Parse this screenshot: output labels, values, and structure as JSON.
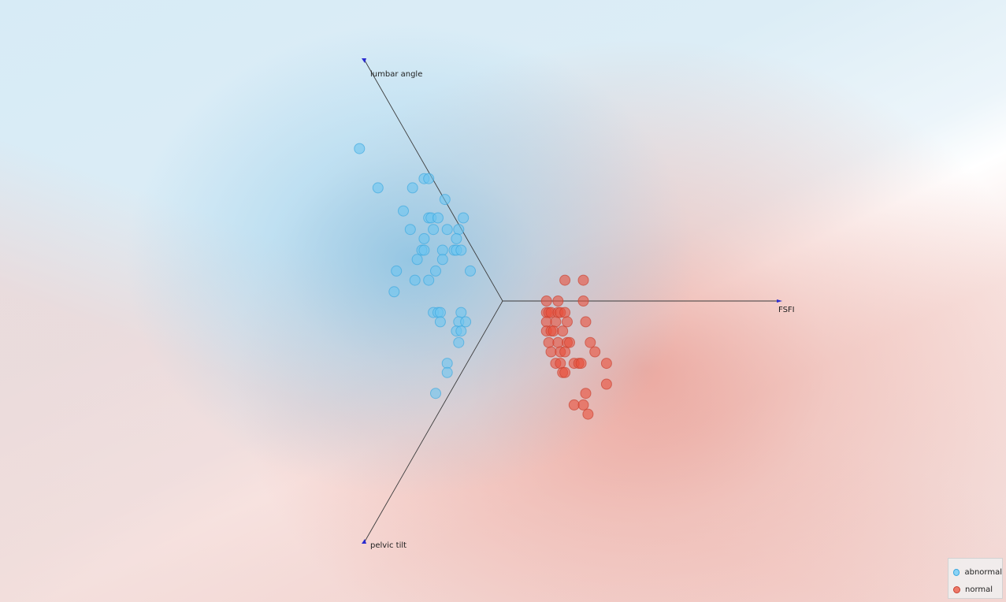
{
  "chart_data": {
    "type": "scatter",
    "projection": "radviz",
    "title": "",
    "anchors": [
      {
        "label": "lumbar angle"
      },
      {
        "label": "FSFI"
      },
      {
        "label": "pelvic tilt"
      }
    ],
    "legend": {
      "placement": "bottom-right",
      "items": [
        {
          "label": "abnormal",
          "color": "#6cc5f0"
        },
        {
          "label": "normal",
          "color": "#e8503c"
        }
      ]
    },
    "series": [
      {
        "name": "abnormal",
        "color": "#6cc5f0",
        "points": [
          [
            -0.62,
            0.66
          ],
          [
            -0.54,
            0.49
          ],
          [
            -0.34,
            0.53
          ],
          [
            -0.32,
            0.53
          ],
          [
            -0.39,
            0.49
          ],
          [
            -0.25,
            0.44
          ],
          [
            -0.43,
            0.39
          ],
          [
            -0.32,
            0.36
          ],
          [
            -0.31,
            0.36
          ],
          [
            -0.28,
            0.36
          ],
          [
            -0.17,
            0.36
          ],
          [
            -0.4,
            0.31
          ],
          [
            -0.3,
            0.31
          ],
          [
            -0.24,
            0.31
          ],
          [
            -0.19,
            0.31
          ],
          [
            -0.34,
            0.27
          ],
          [
            -0.2,
            0.27
          ],
          [
            -0.35,
            0.22
          ],
          [
            -0.34,
            0.22
          ],
          [
            -0.26,
            0.22
          ],
          [
            -0.21,
            0.22
          ],
          [
            -0.2,
            0.22
          ],
          [
            -0.18,
            0.22
          ],
          [
            -0.37,
            0.18
          ],
          [
            -0.26,
            0.18
          ],
          [
            -0.46,
            0.13
          ],
          [
            -0.29,
            0.13
          ],
          [
            -0.14,
            0.13
          ],
          [
            -0.38,
            0.09
          ],
          [
            -0.32,
            0.09
          ],
          [
            -0.47,
            0.04
          ],
          [
            -0.3,
            -0.05
          ],
          [
            -0.28,
            -0.05
          ],
          [
            -0.27,
            -0.05
          ],
          [
            -0.18,
            -0.05
          ],
          [
            -0.27,
            -0.09
          ],
          [
            -0.19,
            -0.09
          ],
          [
            -0.16,
            -0.09
          ],
          [
            -0.2,
            -0.13
          ],
          [
            -0.18,
            -0.13
          ],
          [
            -0.19,
            -0.18
          ],
          [
            -0.24,
            -0.27
          ],
          [
            -0.24,
            -0.31
          ],
          [
            -0.29,
            -0.4
          ]
        ]
      },
      {
        "name": "normal",
        "color": "#e8503c",
        "points": [
          [
            0.27,
            0.09
          ],
          [
            0.35,
            0.09
          ],
          [
            0.19,
            0
          ],
          [
            0.24,
            0
          ],
          [
            0.35,
            0
          ],
          [
            0.19,
            -0.05
          ],
          [
            0.2,
            -0.05
          ],
          [
            0.21,
            -0.05
          ],
          [
            0.24,
            -0.05
          ],
          [
            0.25,
            -0.05
          ],
          [
            0.27,
            -0.05
          ],
          [
            0.19,
            -0.09
          ],
          [
            0.23,
            -0.09
          ],
          [
            0.28,
            -0.09
          ],
          [
            0.36,
            -0.09
          ],
          [
            0.19,
            -0.13
          ],
          [
            0.21,
            -0.13
          ],
          [
            0.22,
            -0.13
          ],
          [
            0.26,
            -0.13
          ],
          [
            0.2,
            -0.18
          ],
          [
            0.24,
            -0.18
          ],
          [
            0.28,
            -0.18
          ],
          [
            0.29,
            -0.18
          ],
          [
            0.38,
            -0.18
          ],
          [
            0.21,
            -0.22
          ],
          [
            0.25,
            -0.22
          ],
          [
            0.27,
            -0.22
          ],
          [
            0.4,
            -0.22
          ],
          [
            0.23,
            -0.27
          ],
          [
            0.25,
            -0.27
          ],
          [
            0.31,
            -0.27
          ],
          [
            0.33,
            -0.27
          ],
          [
            0.34,
            -0.27
          ],
          [
            0.45,
            -0.27
          ],
          [
            0.26,
            -0.31
          ],
          [
            0.27,
            -0.31
          ],
          [
            0.45,
            -0.36
          ],
          [
            0.36,
            -0.4
          ],
          [
            0.31,
            -0.45
          ],
          [
            0.35,
            -0.45
          ],
          [
            0.37,
            -0.49
          ]
        ]
      }
    ]
  }
}
